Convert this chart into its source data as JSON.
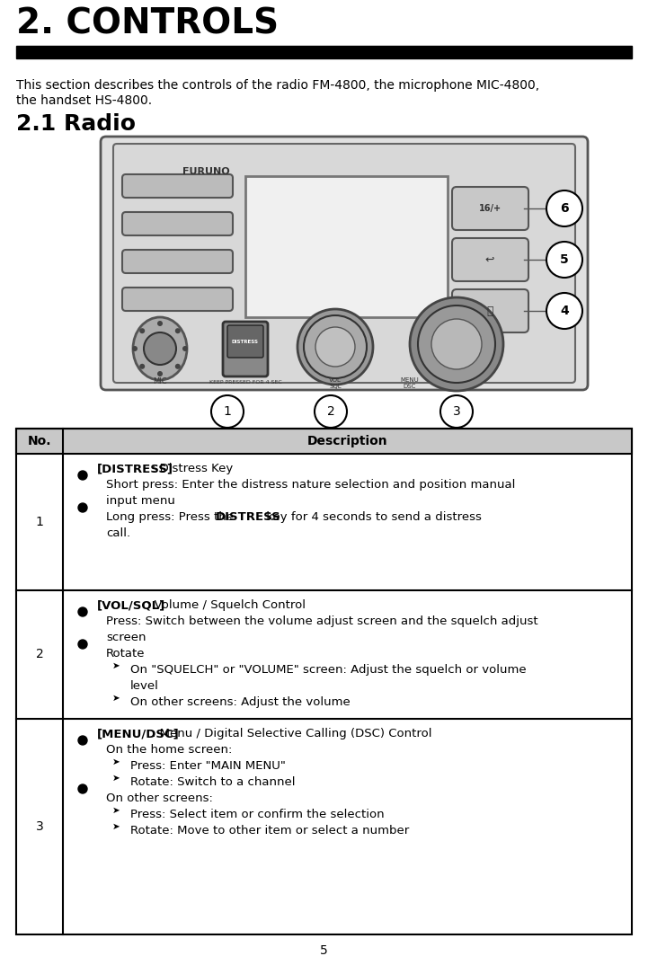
{
  "title": "2. CONTROLS",
  "subtitle_line1": "This section describes the controls of the radio FM-4800, the microphone MIC-4800,",
  "subtitle_line2": "the handset HS-4800.",
  "section_title": "2.1 Radio",
  "table_header_no": "No.",
  "table_header_desc": "Description",
  "row1_no": "1",
  "row1_lines": [
    {
      "type": "header",
      "bold": "[DISTRESS]",
      "normal": ": Distress Key"
    },
    {
      "type": "bullet",
      "text": "Short press: Enter the distress nature selection and position manual"
    },
    {
      "type": "indent",
      "text": "input menu"
    },
    {
      "type": "bullet_mixed",
      "pre": "Long press: Press the ",
      "bold": "DISTRESS",
      "post": " key for 4 seconds to send a distress"
    },
    {
      "type": "indent",
      "text": "call."
    }
  ],
  "row2_no": "2",
  "row2_lines": [
    {
      "type": "header",
      "bold": "[VOL/SQL]",
      "normal": ": Volume / Squelch Control"
    },
    {
      "type": "bullet",
      "text": "Press: Switch between the volume adjust screen and the squelch adjust"
    },
    {
      "type": "indent",
      "text": "screen"
    },
    {
      "type": "bullet",
      "text": "Rotate"
    },
    {
      "type": "arrow",
      "text": "On \"SQUELCH\" or \"VOLUME\" screen: Adjust the squelch or volume"
    },
    {
      "type": "arrow_indent",
      "text": "level"
    },
    {
      "type": "arrow",
      "text": "On other screens: Adjust the volume"
    }
  ],
  "row3_no": "3",
  "row3_lines": [
    {
      "type": "header",
      "bold": "[MENU/DSC]",
      "normal": ": Menu / Digital Selective Calling (DSC) Control"
    },
    {
      "type": "bullet",
      "text": "On the home screen:"
    },
    {
      "type": "arrow",
      "text": "Press: Enter \"MAIN MENU\""
    },
    {
      "type": "arrow",
      "text": "Rotate: Switch to a channel"
    },
    {
      "type": "bullet",
      "text": "On other screens:"
    },
    {
      "type": "arrow",
      "text": "Press: Select item or confirm the selection"
    },
    {
      "type": "arrow",
      "text": "Rotate: Move to other item or select a number"
    }
  ],
  "page_number": "5",
  "bg_color": "#ffffff",
  "header_bg": "#c8c8c8",
  "black": "#000000",
  "dark_gray": "#333333",
  "mid_gray": "#888888",
  "light_gray": "#cccccc",
  "radio_body_color": "#e0e0e0",
  "radio_inner_color": "#d0d0d0",
  "radio_edge_color": "#555555",
  "knob_color": "#b0b0b0",
  "knob_edge": "#444444",
  "screen_color": "#e8e8e8",
  "screen_edge": "#777777",
  "btn_color": "#c8c8c8",
  "btn_edge": "#555555",
  "distress_color": "#555555",
  "distress_edge": "#333333",
  "speaker_color": "#aaaaaa",
  "mic_color": "#999999"
}
